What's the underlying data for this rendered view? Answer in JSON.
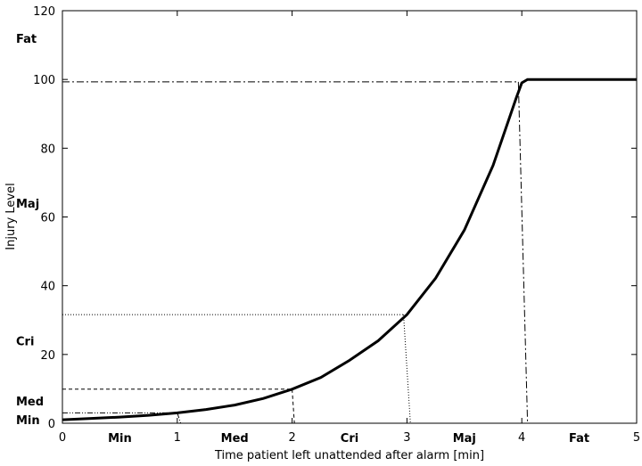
{
  "chart_data": {
    "type": "line",
    "title": "",
    "xlabel": "Time patient left unattended after alarm [min]",
    "ylabel": "Injury Level",
    "xlim": [
      0,
      5
    ],
    "ylim": [
      0,
      120
    ],
    "x_ticks": [
      0,
      1,
      2,
      3,
      4,
      5
    ],
    "y_ticks": [
      0,
      20,
      40,
      60,
      80,
      100,
      120
    ],
    "grid": false,
    "legend": "none",
    "series": [
      {
        "x": [
          0,
          0.25,
          0.5,
          0.75,
          1.0,
          1.25,
          1.5,
          1.75,
          2.0,
          2.25,
          2.5,
          2.75,
          3.0,
          3.25,
          3.5,
          3.75,
          3.95,
          4.0,
          4.05,
          4.5,
          5.0
        ],
        "y": [
          1.0,
          1.4,
          1.8,
          2.3,
          3.0,
          4.0,
          5.3,
          7.2,
          9.9,
          13.3,
          18.3,
          24.0,
          31.6,
          42.2,
          56.2,
          75.0,
          94.5,
          99.0,
          100,
          100,
          100
        ]
      }
    ],
    "threshold_lines": [
      {
        "style": "dash-dot-dot",
        "x": 1.0,
        "y": 3.0,
        "x_bottom": 1.03
      },
      {
        "style": "dashed",
        "x": 2.0,
        "y": 9.9,
        "x_bottom": 2.02
      },
      {
        "style": "dotted",
        "x": 2.97,
        "y": 31.6,
        "x_bottom": 3.03
      },
      {
        "style": "dash-dot",
        "x": 3.97,
        "y": 99.3,
        "x_bottom": 4.05
      }
    ],
    "y_category_labels": [
      {
        "text": "Fat",
        "y": 112
      },
      {
        "text": "Maj",
        "y": 64
      },
      {
        "text": "Cri",
        "y": 24
      },
      {
        "text": "Med",
        "y": 6.5
      },
      {
        "text": "Min",
        "y": 1.0
      }
    ],
    "x_category_labels": [
      {
        "text": "Min",
        "x": 0.5
      },
      {
        "text": "Med",
        "x": 1.5
      },
      {
        "text": "Cri",
        "x": 2.5
      },
      {
        "text": "Maj",
        "x": 3.5
      },
      {
        "text": "Fat",
        "x": 4.5
      }
    ]
  }
}
